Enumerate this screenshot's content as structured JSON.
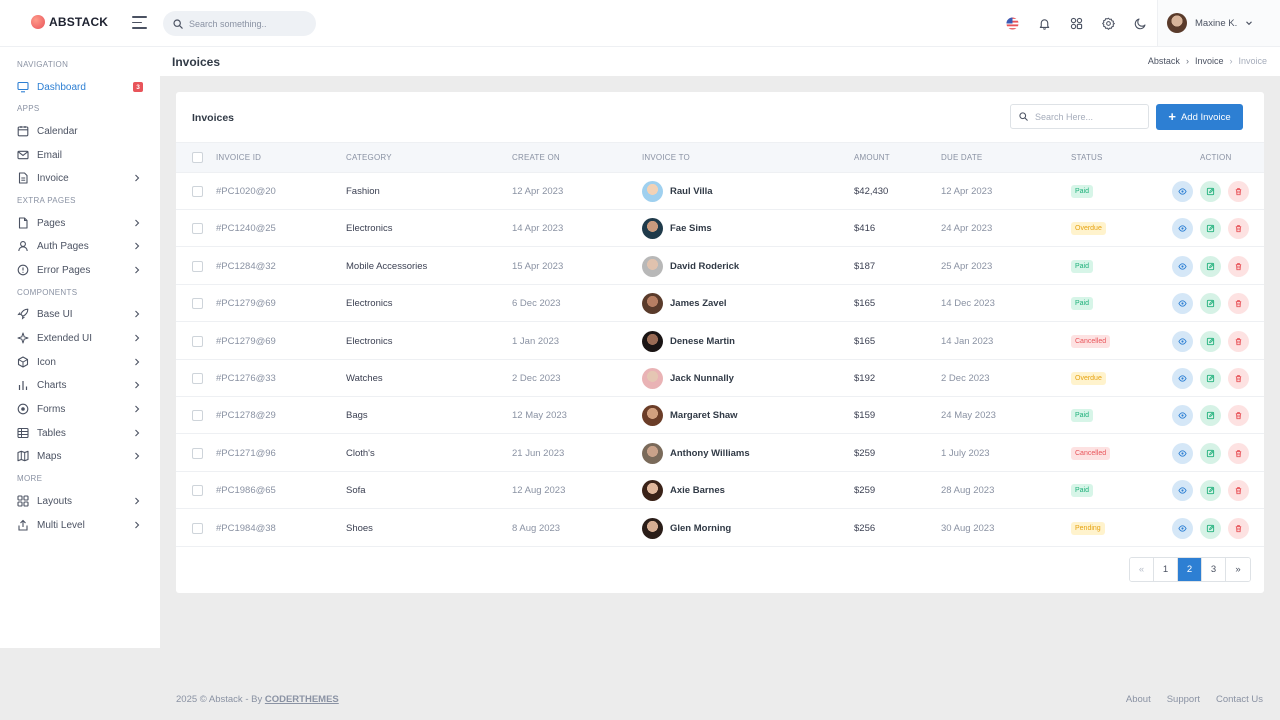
{
  "brand": {
    "name": "ABSTACK"
  },
  "topbar": {
    "search_placeholder": "Search something..",
    "user_name": "Maxine K."
  },
  "sidebar": {
    "sections": {
      "navigation": "NAVIGATION",
      "apps": "APPS",
      "extra_pages": "EXTRA PAGES",
      "components": "COMPONENTS",
      "more": "MORE"
    },
    "items": [
      {
        "label": "Dashboard",
        "icon": "monitor-icon",
        "badge": "3"
      },
      {
        "label": "Calendar",
        "icon": "calendar-icon"
      },
      {
        "label": "Email",
        "icon": "mail-icon"
      },
      {
        "label": "Invoice",
        "icon": "file-icon"
      },
      {
        "label": "Pages",
        "icon": "page-icon"
      },
      {
        "label": "Auth Pages",
        "icon": "user-icon"
      },
      {
        "label": "Error Pages",
        "icon": "alert-icon"
      },
      {
        "label": "Base UI",
        "icon": "rocket-icon"
      },
      {
        "label": "Extended UI",
        "icon": "sparkle-icon"
      },
      {
        "label": "Icon",
        "icon": "box-icon"
      },
      {
        "label": "Charts",
        "icon": "bar-chart-icon"
      },
      {
        "label": "Forms",
        "icon": "radio-icon"
      },
      {
        "label": "Tables",
        "icon": "table-icon"
      },
      {
        "label": "Maps",
        "icon": "map-icon"
      },
      {
        "label": "Layouts",
        "icon": "grid-icon"
      },
      {
        "label": "Multi Level",
        "icon": "share-icon"
      }
    ]
  },
  "page": {
    "title": "Invoices",
    "breadcrumb": [
      "Abstack",
      "Invoice",
      "Invoice"
    ]
  },
  "card": {
    "title": "Invoices",
    "search_placeholder": "Search Here...",
    "add_label": "Add Invoice"
  },
  "table": {
    "columns": [
      "INVOICE ID",
      "CATEGORY",
      "CREATE ON",
      "INVOICE TO",
      "AMOUNT",
      "DUE DATE",
      "STATUS",
      "ACTION"
    ],
    "rows": [
      {
        "id": "#PC1020@20",
        "category": "Fashion",
        "created": "12 Apr 2023",
        "to": "Raul Villa",
        "amount": "$42,430",
        "due": "12 Apr 2023",
        "status": "Paid"
      },
      {
        "id": "#PC1240@25",
        "category": "Electronics",
        "created": "14 Apr 2023",
        "to": "Fae Sims",
        "amount": "$416",
        "due": "24 Apr 2023",
        "status": "Overdue"
      },
      {
        "id": "#PC1284@32",
        "category": "Mobile Accessories",
        "created": "15 Apr 2023",
        "to": "David Roderick",
        "amount": "$187",
        "due": "25 Apr 2023",
        "status": "Paid"
      },
      {
        "id": "#PC1279@69",
        "category": "Electronics",
        "created": "6 Dec 2023",
        "to": "James Zavel",
        "amount": "$165",
        "due": "14 Dec 2023",
        "status": "Paid"
      },
      {
        "id": "#PC1279@69",
        "category": "Electronics",
        "created": "1 Jan 2023",
        "to": "Denese Martin",
        "amount": "$165",
        "due": "14 Jan 2023",
        "status": "Cancelled"
      },
      {
        "id": "#PC1276@33",
        "category": "Watches",
        "created": "2 Dec 2023",
        "to": "Jack Nunnally",
        "amount": "$192",
        "due": "2 Dec 2023",
        "status": "Overdue"
      },
      {
        "id": "#PC1278@29",
        "category": "Bags",
        "created": "12 May 2023",
        "to": "Margaret Shaw",
        "amount": "$159",
        "due": "24 May 2023",
        "status": "Paid"
      },
      {
        "id": "#PC1271@96",
        "category": "Cloth's",
        "created": "21 Jun 2023",
        "to": "Anthony Williams",
        "amount": "$259",
        "due": "1 July 2023",
        "status": "Cancelled"
      },
      {
        "id": "#PC1986@65",
        "category": "Sofa",
        "created": "12 Aug 2023",
        "to": "Axie Barnes",
        "amount": "$259",
        "due": "28 Aug 2023",
        "status": "Paid"
      },
      {
        "id": "#PC1984@38",
        "category": "Shoes",
        "created": "8 Aug 2023",
        "to": "Glen Morning",
        "amount": "$256",
        "due": "30 Aug 2023",
        "status": "Pending"
      }
    ]
  },
  "pagination": {
    "prev": "«",
    "pages": [
      "1",
      "2",
      "3"
    ],
    "current": "2",
    "next": "»"
  },
  "footer": {
    "copyright": "2025 © Abstack - By ",
    "brand_link": "CODERTHEMES",
    "links": [
      "About",
      "Support",
      "Contact Us"
    ]
  },
  "colors": {
    "primary": "#2d7fd3",
    "danger": "#e8545a",
    "success": "#1eb07a",
    "warning": "#e6a313"
  }
}
